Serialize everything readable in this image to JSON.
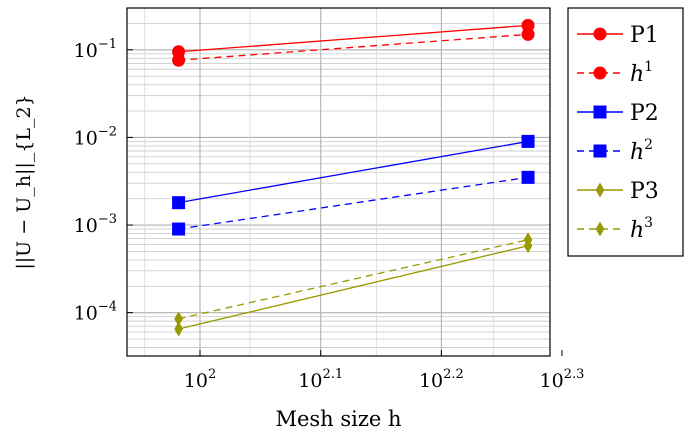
{
  "chart_data": {
    "type": "line",
    "xscale": "log",
    "yscale": "log",
    "xlabel": "Mesh size h",
    "ylabel": "||U − U_h||_{L_2}",
    "xlim": [
      87,
      195
    ],
    "ylim": [
      3.2e-05,
      0.3
    ],
    "x_ticks": [
      {
        "value": 100,
        "base": "10",
        "exp": "2"
      },
      {
        "value": 125.9,
        "base": "10",
        "exp": "2.1"
      },
      {
        "value": 158.5,
        "base": "10",
        "exp": "2.2"
      },
      {
        "value": 199.5,
        "base": "10",
        "exp": "2.3"
      }
    ],
    "y_ticks": [
      {
        "value": 0.1,
        "base": "10",
        "exp": "−1"
      },
      {
        "value": 0.01,
        "base": "10",
        "exp": "−2"
      },
      {
        "value": 0.001,
        "base": "10",
        "exp": "−3"
      },
      {
        "value": 0.0001,
        "base": "10",
        "exp": "−4"
      }
    ],
    "grid": true,
    "legend_position": "outside-right",
    "x": [
      96,
      187
    ],
    "series": [
      {
        "name": "P1",
        "legend_main": "P1",
        "legend_sup": "",
        "values": [
          0.095,
          0.19
        ],
        "color": "#ff0000",
        "dash": false,
        "marker": "circle"
      },
      {
        "name": "h^1",
        "legend_main": "h",
        "legend_sup": "1",
        "values": [
          0.076,
          0.15
        ],
        "color": "#ff0000",
        "dash": true,
        "marker": "circle"
      },
      {
        "name": "P2",
        "legend_main": "P2",
        "legend_sup": "",
        "values": [
          0.0018,
          0.009
        ],
        "color": "#0000ff",
        "dash": false,
        "marker": "square"
      },
      {
        "name": "h^2",
        "legend_main": "h",
        "legend_sup": "2",
        "values": [
          0.0009,
          0.0035
        ],
        "color": "#0000ff",
        "dash": true,
        "marker": "square"
      },
      {
        "name": "P3",
        "legend_main": "P3",
        "legend_sup": "",
        "values": [
          6.5e-05,
          0.00058
        ],
        "color": "#999900",
        "dash": false,
        "marker": "diamond"
      },
      {
        "name": "h^3",
        "legend_main": "h",
        "legend_sup": "3",
        "values": [
          8.5e-05,
          0.00068
        ],
        "color": "#999900",
        "dash": true,
        "marker": "diamond"
      }
    ]
  }
}
